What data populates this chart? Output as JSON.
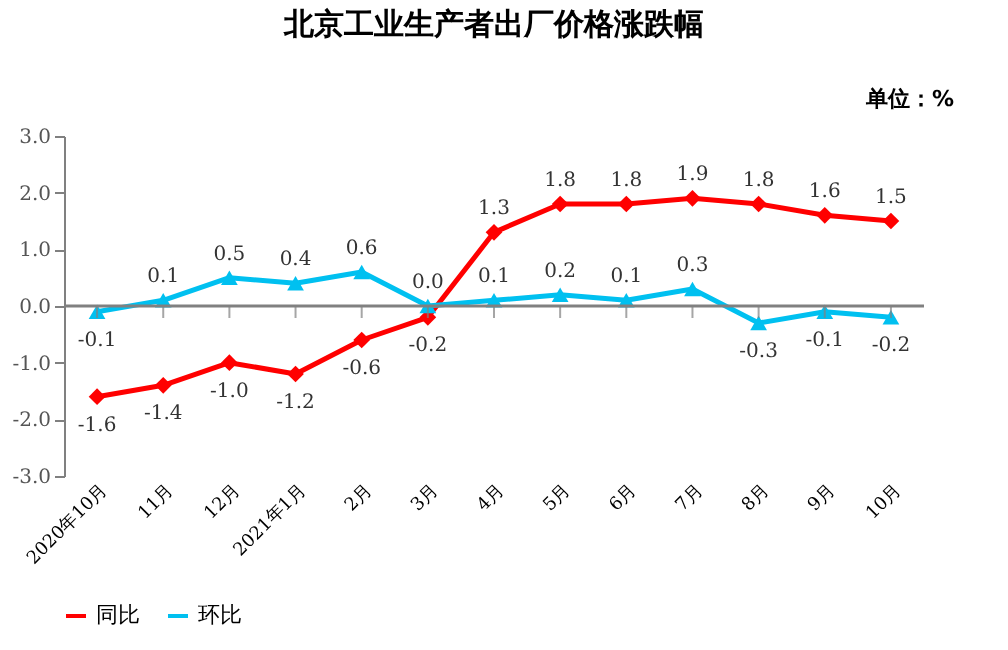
{
  "chart_data": {
    "type": "line",
    "title": "北京工业生产者出厂价格涨跌幅",
    "annotations": [
      "单位：%"
    ],
    "categories": [
      "2020年10月",
      "11月",
      "12月",
      "2021年1月",
      "2月",
      "3月",
      "4月",
      "5月",
      "6月",
      "7月",
      "8月",
      "9月",
      "10月"
    ],
    "series": [
      {
        "name": "同比",
        "color": "#ff0000",
        "marker": "diamond",
        "values": [
          -1.6,
          -1.4,
          -1.0,
          -1.2,
          -0.6,
          -0.2,
          1.3,
          1.8,
          1.8,
          1.9,
          1.8,
          1.6,
          1.5
        ],
        "value_labels": [
          "-1.6",
          "-1.4",
          "-1.0",
          "-1.2",
          "-0.6",
          "-0.2",
          "1.3",
          "1.8",
          "1.8",
          "1.9",
          "1.8",
          "1.6",
          "1.5"
        ]
      },
      {
        "name": "环比",
        "color": "#00c0f0",
        "marker": "triangle",
        "values": [
          -0.1,
          0.1,
          0.5,
          0.4,
          0.6,
          0.0,
          0.1,
          0.2,
          0.1,
          0.3,
          -0.3,
          -0.1,
          -0.2
        ],
        "value_labels": [
          "-0.1",
          "0.1",
          "0.5",
          "0.4",
          "0.6",
          "0.0",
          "0.1",
          "0.2",
          "0.1",
          "0.3",
          "-0.3",
          "-0.1",
          "-0.2"
        ]
      }
    ],
    "ylim": [
      -3.0,
      3.0
    ],
    "yticks": [
      {
        "value": -3,
        "label": "-3.0"
      },
      {
        "value": -2,
        "label": "-2.0"
      },
      {
        "value": -1,
        "label": "-1.0"
      },
      {
        "value": 0,
        "label": "0.0"
      },
      {
        "value": 1,
        "label": "1.0"
      },
      {
        "value": 2,
        "label": "2.0"
      },
      {
        "value": 3,
        "label": "3.0"
      }
    ],
    "ref_lines": [
      {
        "axis": "y",
        "value": 0,
        "color": "#808080"
      }
    ],
    "grid": false,
    "legend": "bottom",
    "line_style": "solid"
  }
}
